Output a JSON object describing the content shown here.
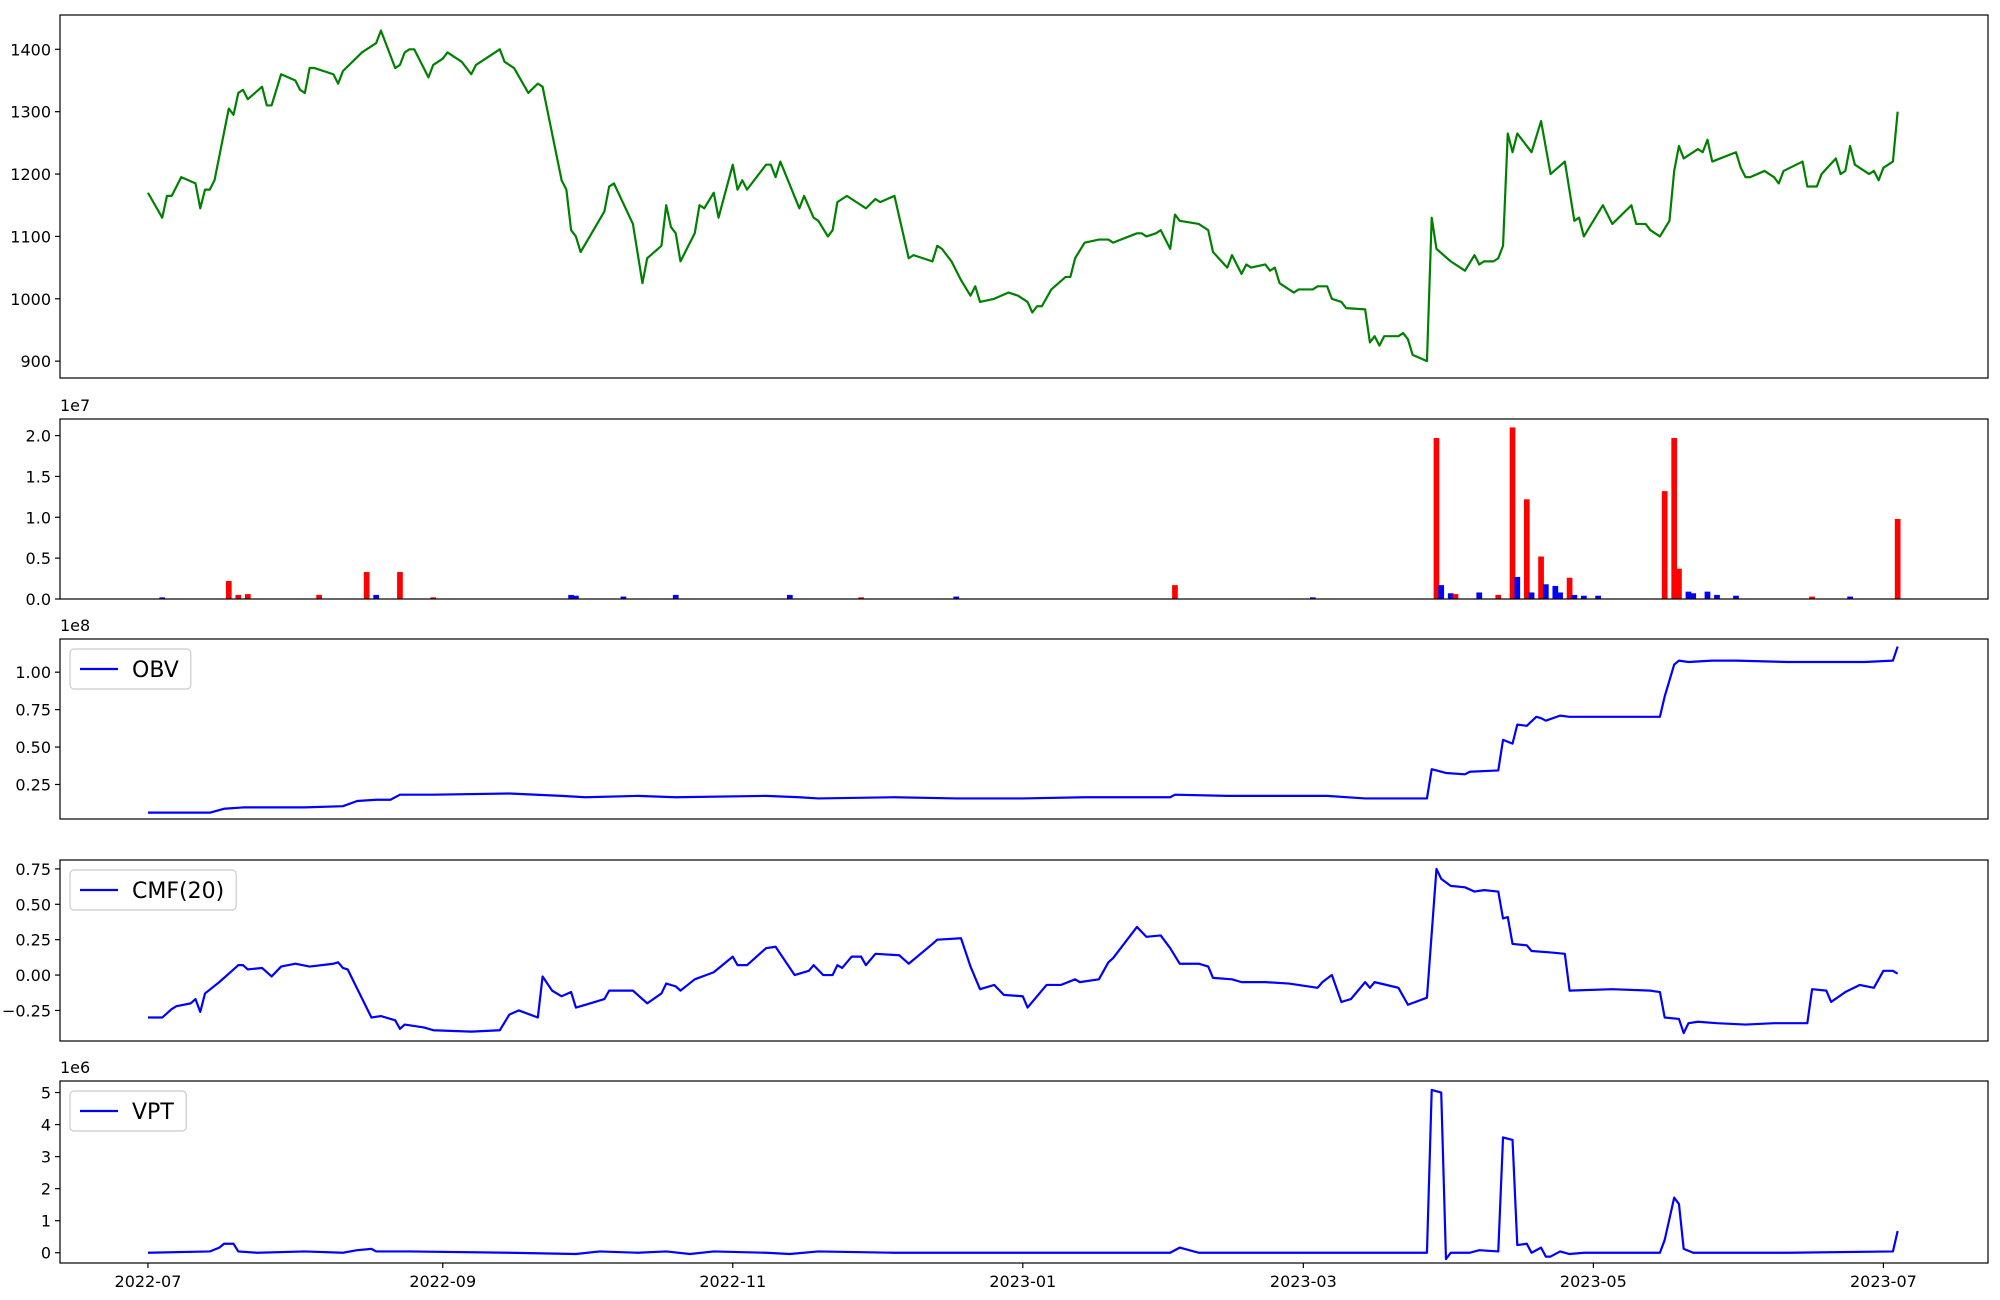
{
  "chart_data": [
    {
      "type": "line",
      "color": "green",
      "x": [
        0,
        3,
        4,
        5,
        7,
        10,
        11,
        12,
        13,
        14,
        17,
        18,
        19,
        20,
        21,
        24,
        25,
        26,
        28,
        31,
        32,
        33,
        34,
        35,
        39,
        40,
        41,
        45,
        48,
        49,
        52,
        53,
        54,
        55,
        56,
        59,
        60,
        62,
        63,
        66,
        68,
        69,
        74,
        75,
        77,
        80,
        82,
        83,
        87,
        88,
        89,
        90,
        91,
        96,
        97,
        98,
        102,
        104,
        105,
        108,
        109,
        110,
        111,
        112,
        115,
        116,
        117,
        119,
        120,
        123,
        124,
        125,
        126,
        130,
        131,
        132,
        133,
        137,
        138,
        140,
        141,
        143,
        144,
        145,
        147,
        149,
        151,
        153,
        154,
        157,
        160,
        161,
        163,
        165,
        166,
        167,
        169,
        171,
        173,
        174,
        175,
        178,
        181,
        183,
        185,
        186,
        187,
        188,
        190,
        193,
        194,
        195,
        197,
        200,
        202,
        203,
        208,
        209,
        210,
        212,
        213,
        215,
        216,
        217,
        221,
        223,
        224,
        227,
        228,
        230,
        231,
        232,
        235,
        236,
        237,
        238,
        241,
        242,
        245,
        246,
        248,
        249,
        251,
        252,
        256,
        257,
        258,
        259,
        260,
        263,
        264,
        265,
        266,
        269,
        270,
        271,
        274,
        277,
        279,
        280,
        281,
        283,
        284,
        285,
        286,
        287,
        288,
        291,
        293,
        295,
        298,
        300,
        301,
        302,
        306,
        308,
        312,
        313,
        315,
        316,
        318,
        320,
        321,
        322,
        323,
        326,
        327,
        328,
        329,
        334,
        335,
        336,
        337,
        340,
        342,
        343,
        344,
        348,
        349,
        351,
        352,
        355,
        356,
        357,
        358,
        359,
        362,
        363,
        364,
        365,
        367,
        368
      ],
      "values": [
        1170,
        1130,
        1165,
        1165,
        1195,
        1185,
        1145,
        1175,
        1175,
        1190,
        1305,
        1295,
        1330,
        1335,
        1320,
        1340,
        1310,
        1310,
        1360,
        1350,
        1335,
        1330,
        1370,
        1370,
        1360,
        1345,
        1365,
        1395,
        1410,
        1430,
        1370,
        1375,
        1395,
        1400,
        1400,
        1355,
        1375,
        1385,
        1395,
        1380,
        1360,
        1375,
        1400,
        1380,
        1370,
        1330,
        1345,
        1340,
        1190,
        1175,
        1110,
        1100,
        1075,
        1140,
        1180,
        1185,
        1120,
        1025,
        1065,
        1085,
        1150,
        1115,
        1105,
        1060,
        1105,
        1150,
        1145,
        1170,
        1130,
        1215,
        1175,
        1190,
        1175,
        1215,
        1215,
        1195,
        1220,
        1145,
        1165,
        1130,
        1125,
        1100,
        1110,
        1155,
        1165,
        1155,
        1145,
        1160,
        1155,
        1165,
        1065,
        1070,
        1065,
        1060,
        1085,
        1080,
        1060,
        1030,
        1005,
        1020,
        995,
        1000,
        1010,
        1005,
        995,
        978,
        988,
        988,
        1015,
        1035,
        1035,
        1065,
        1090,
        1095,
        1095,
        1090,
        1105,
        1105,
        1100,
        1105,
        1110,
        1080,
        1135,
        1125,
        1120,
        1110,
        1075,
        1050,
        1070,
        1040,
        1055,
        1050,
        1055,
        1045,
        1050,
        1025,
        1010,
        1015,
        1015,
        1020,
        1020,
        1000,
        995,
        985,
        983,
        930,
        940,
        925,
        940,
        940,
        945,
        935,
        910,
        900,
        1130,
        1080,
        1060,
        1045,
        1070,
        1055,
        1060,
        1060,
        1065,
        1085,
        1265,
        1235,
        1265,
        1235,
        1285,
        1200,
        1220,
        1125,
        1130,
        1100,
        1150,
        1120,
        1150,
        1120,
        1120,
        1110,
        1100,
        1125,
        1205,
        1245,
        1225,
        1240,
        1235,
        1255,
        1220,
        1235,
        1210,
        1195,
        1195,
        1205,
        1195,
        1185,
        1205,
        1220,
        1180,
        1180,
        1200,
        1225,
        1200,
        1205,
        1245,
        1215,
        1200,
        1205,
        1190,
        1210,
        1220,
        1300
      ],
      "xlim": [
        -18.5,
        387
      ],
      "ylim": [
        873,
        1455
      ],
      "yticks": [
        900,
        1000,
        1100,
        1200,
        1300,
        1400
      ]
    },
    {
      "type": "bar",
      "offset_text": "1e7",
      "x": [
        3,
        17,
        19,
        21,
        36,
        46,
        48,
        53,
        60,
        89,
        90,
        100,
        111,
        135,
        150,
        170,
        216,
        245,
        271,
        272,
        274,
        275,
        280,
        284,
        287,
        288,
        290,
        291,
        293,
        294,
        296,
        297,
        299,
        300,
        302,
        305,
        319,
        321,
        322,
        324,
        325,
        328,
        330,
        334,
        350,
        358,
        368
      ],
      "values": [
        200000,
        2200000,
        500000,
        600000,
        500000,
        3300000,
        500000,
        3300000,
        200000,
        500000,
        400000,
        300000,
        500000,
        500000,
        200000,
        300000,
        1700000,
        200000,
        19700000,
        1700000,
        700000,
        600000,
        800000,
        500000,
        21000000,
        2700000,
        12200000,
        800000,
        5200000,
        1800000,
        1600000,
        800000,
        2600000,
        500000,
        400000,
        400000,
        13200000,
        19700000,
        3700000,
        900000,
        700000,
        900000,
        500000,
        400000,
        300000,
        300000,
        9800000
      ],
      "colors": [
        "blue",
        "red",
        "red",
        "red",
        "red",
        "red",
        "blue",
        "red",
        "red",
        "blue",
        "blue",
        "blue",
        "blue",
        "blue",
        "red",
        "blue",
        "red",
        "blue",
        "red",
        "blue",
        "blue",
        "red",
        "blue",
        "red",
        "red",
        "blue",
        "red",
        "blue",
        "red",
        "blue",
        "blue",
        "blue",
        "red",
        "blue",
        "blue",
        "blue",
        "red",
        "red",
        "red",
        "blue",
        "blue",
        "blue",
        "blue",
        "blue",
        "red",
        "blue",
        "red"
      ],
      "xlim": [
        -18.5,
        387
      ],
      "ylim": [
        0,
        22030000
      ],
      "yticks": [
        {
          "value": 0,
          "label": "0.0"
        },
        {
          "value": 5000000,
          "label": "0.5"
        },
        {
          "value": 10000000,
          "label": "1.0"
        },
        {
          "value": 15000000,
          "label": "1.5"
        },
        {
          "value": 20000000,
          "label": "2.0"
        }
      ]
    },
    {
      "type": "line",
      "offset_text": "1e8",
      "legend": "upper left",
      "x": [
        0,
        13,
        16,
        20,
        25,
        33,
        41,
        44,
        48,
        51,
        53,
        60,
        76,
        87,
        92,
        103,
        111,
        130,
        137,
        141,
        157,
        170,
        184,
        197,
        215,
        216,
        227,
        248,
        256,
        269,
        270,
        273,
        277,
        278,
        284,
        285,
        287,
        288,
        290,
        292,
        293,
        294,
        297,
        299,
        308,
        318,
        319,
        321,
        322,
        324,
        329,
        334,
        345,
        361,
        367,
        368
      ],
      "series": [
        {
          "name": "OBV",
          "color": "blue",
          "values": [
            6200000,
            6200000,
            8800000,
            9700000,
            9700000,
            9700000,
            10500000,
            14000000,
            14800000,
            14800000,
            18200000,
            18200000,
            19000000,
            17400000,
            16500000,
            17400000,
            16500000,
            17400000,
            16500000,
            15700000,
            16500000,
            15700000,
            15700000,
            16500000,
            16500000,
            18200000,
            17400000,
            17400000,
            15700000,
            15700000,
            35200000,
            32700000,
            31800000,
            33500000,
            34400000,
            54800000,
            52300000,
            65000000,
            64200000,
            70200000,
            69300000,
            67600000,
            71000000,
            70200000,
            70200000,
            70200000,
            83800000,
            105100000,
            107700000,
            106800000,
            107700000,
            107700000,
            106800000,
            106800000,
            107700000,
            117100000
          ]
        }
      ],
      "xlim": [
        -18.5,
        387
      ],
      "ylim": [
        1960000,
        122160000
      ],
      "yticks": [
        {
          "value": 25000000,
          "label": "0.25"
        },
        {
          "value": 50000000,
          "label": "0.50"
        },
        {
          "value": 75000000,
          "label": "0.75"
        },
        {
          "value": 100000000,
          "label": "1.00"
        }
      ]
    },
    {
      "type": "line",
      "legend": "upper left",
      "x": [
        0,
        3,
        5,
        6,
        9,
        10,
        11,
        12,
        15,
        17,
        19,
        20,
        21,
        24,
        26,
        28,
        31,
        34,
        39,
        40,
        41,
        42,
        47,
        49,
        52,
        53,
        54,
        58,
        60,
        68,
        74,
        76,
        78,
        82,
        83,
        85,
        87,
        89,
        90,
        92,
        96,
        97,
        102,
        105,
        108,
        109,
        111,
        112,
        115,
        119,
        123,
        124,
        126,
        130,
        132,
        136,
        139,
        140,
        142,
        144,
        145,
        146,
        148,
        150,
        151,
        153,
        158,
        160,
        165,
        166,
        171,
        173,
        175,
        178,
        180,
        184,
        185,
        189,
        192,
        195,
        196,
        200,
        202,
        203,
        208,
        210,
        213,
        215,
        217,
        221,
        223,
        224,
        228,
        230,
        235,
        240,
        246,
        247,
        249,
        251,
        253,
        256,
        257,
        258,
        263,
        265,
        269,
        271,
        272,
        274,
        277,
        279,
        281,
        284,
        285,
        286,
        287,
        290,
        291,
        295,
        298,
        299,
        308,
        316,
        318,
        319,
        322,
        323,
        324,
        326,
        330,
        336,
        342,
        349,
        350,
        353,
        354,
        357,
        360,
        363,
        365,
        367,
        368
      ],
      "series": [
        {
          "name": "CMF(20)",
          "color": "blue",
          "values": [
            -0.3,
            -0.3,
            -0.24,
            -0.22,
            -0.2,
            -0.17,
            -0.26,
            -0.13,
            -0.05,
            0.01,
            0.07,
            0.07,
            0.04,
            0.05,
            -0.01,
            0.06,
            0.08,
            0.06,
            0.08,
            0.09,
            0.05,
            0.04,
            -0.3,
            -0.29,
            -0.32,
            -0.38,
            -0.35,
            -0.37,
            -0.39,
            -0.4,
            -0.39,
            -0.28,
            -0.25,
            -0.3,
            -0.01,
            -0.11,
            -0.15,
            -0.12,
            -0.23,
            -0.21,
            -0.17,
            -0.11,
            -0.11,
            -0.2,
            -0.13,
            -0.06,
            -0.08,
            -0.11,
            -0.03,
            0.02,
            0.13,
            0.07,
            0.07,
            0.19,
            0.2,
            0.0,
            0.03,
            0.07,
            0.0,
            0.0,
            0.07,
            0.05,
            0.13,
            0.13,
            0.07,
            0.15,
            0.14,
            0.08,
            0.22,
            0.25,
            0.26,
            0.06,
            -0.1,
            -0.07,
            -0.14,
            -0.15,
            -0.23,
            -0.07,
            -0.07,
            -0.03,
            -0.05,
            -0.03,
            0.09,
            0.12,
            0.34,
            0.27,
            0.28,
            0.19,
            0.08,
            0.08,
            0.06,
            -0.02,
            -0.03,
            -0.05,
            -0.05,
            -0.06,
            -0.09,
            -0.05,
            0.0,
            -0.19,
            -0.17,
            -0.05,
            -0.09,
            -0.05,
            -0.09,
            -0.21,
            -0.16,
            0.75,
            0.68,
            0.63,
            0.62,
            0.59,
            0.6,
            0.59,
            0.4,
            0.41,
            0.22,
            0.21,
            0.17,
            0.16,
            0.15,
            -0.11,
            -0.1,
            -0.11,
            -0.12,
            -0.3,
            -0.31,
            -0.41,
            -0.34,
            -0.33,
            -0.34,
            -0.35,
            -0.34,
            -0.34,
            -0.1,
            -0.11,
            -0.19,
            -0.12,
            -0.07,
            -0.09,
            0.03,
            0.03,
            0.01
          ]
        }
      ],
      "xlim": [
        -18.5,
        387
      ],
      "ylim": [
        -0.466,
        0.813
      ],
      "yticks": [
        {
          "value": -0.25,
          "label": "−0.25"
        },
        {
          "value": 0,
          "label": "0.00"
        },
        {
          "value": 0.25,
          "label": "0.25"
        },
        {
          "value": 0.5,
          "label": "0.50"
        },
        {
          "value": 0.75,
          "label": "0.75"
        }
      ]
    },
    {
      "type": "line",
      "offset_text": "1e6",
      "legend": "upper left",
      "x": [
        0,
        13,
        15,
        16,
        18,
        19,
        23,
        33,
        41,
        44,
        47,
        48,
        55,
        76,
        90,
        95,
        103,
        109,
        114,
        119,
        130,
        135,
        141,
        157,
        184,
        215,
        217,
        219,
        221,
        238,
        269,
        270,
        272,
        273,
        274,
        278,
        280,
        284,
        285,
        287,
        288,
        290,
        291,
        293,
        294,
        295,
        297,
        299,
        302,
        318,
        319,
        321,
        322,
        323,
        325,
        345,
        367,
        368
      ],
      "series": [
        {
          "name": "VPT",
          "color": "blue",
          "values": [
            0,
            40000,
            160000,
            280000,
            280000,
            40000,
            0,
            40000,
            0,
            80000,
            120000,
            40000,
            40000,
            0,
            -40000,
            40000,
            0,
            40000,
            -40000,
            40000,
            0,
            -40000,
            40000,
            0,
            0,
            0,
            160000,
            80000,
            0,
            0,
            0,
            5080000,
            5000000,
            -200000,
            0,
            0,
            80000,
            40000,
            3600000,
            3520000,
            240000,
            280000,
            0,
            160000,
            -120000,
            -120000,
            40000,
            -40000,
            0,
            0,
            400000,
            1720000,
            1520000,
            120000,
            0,
            0,
            40000,
            680000
          ]
        }
      ],
      "xlim": [
        -18.5,
        387
      ],
      "ylim": [
        -320000,
        5360000
      ],
      "yticks": [
        0,
        {
          "value": 1000000,
          "label": "1"
        },
        {
          "value": 2000000,
          "label": "2"
        },
        {
          "value": 3000000,
          "label": "3"
        },
        {
          "value": 4000000,
          "label": "4"
        },
        {
          "value": 5000000,
          "label": "5"
        }
      ],
      "xticks": [
        {
          "value": 0,
          "label": "2022-07"
        },
        {
          "value": 62,
          "label": "2022-09"
        },
        {
          "value": 123,
          "label": "2022-11"
        },
        {
          "value": 184,
          "label": "2023-01"
        },
        {
          "value": 243,
          "label": "2023-03"
        },
        {
          "value": 304,
          "label": "2023-05"
        },
        {
          "value": 365,
          "label": "2023-07"
        }
      ]
    }
  ]
}
